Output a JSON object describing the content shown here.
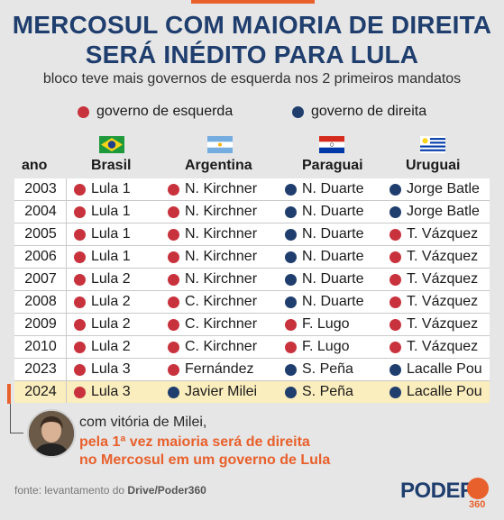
{
  "title_line1": "MERCOSUL COM MAIORIA DE DIREITA",
  "title_line2": "SERÁ INÉDITO PARA LULA",
  "subtitle": "bloco teve mais governos de esquerda nos 2 primeiros mandatos",
  "legend": {
    "left": "governo de esquerda",
    "right": "governo de direita"
  },
  "colors": {
    "left": "#c8323c",
    "right": "#1f3e6e",
    "accent": "#e8602c",
    "title": "#1f3e6e"
  },
  "chart_data": {
    "type": "table",
    "title": "MERCOSUL COM MAIORIA DE DIREITA SERÁ INÉDITO PARA LULA",
    "columns": [
      "ano",
      "Brasil",
      "Argentina",
      "Paraguai",
      "Uruguai"
    ],
    "rows": [
      {
        "year": "2003",
        "cells": [
          {
            "name": "Lula 1",
            "side": "left"
          },
          {
            "name": "N. Kirchner",
            "side": "left"
          },
          {
            "name": "N. Duarte",
            "side": "right"
          },
          {
            "name": "Jorge Batle",
            "side": "right"
          }
        ]
      },
      {
        "year": "2004",
        "cells": [
          {
            "name": "Lula 1",
            "side": "left"
          },
          {
            "name": "N. Kirchner",
            "side": "left"
          },
          {
            "name": "N. Duarte",
            "side": "right"
          },
          {
            "name": "Jorge Batle",
            "side": "right"
          }
        ]
      },
      {
        "year": "2005",
        "cells": [
          {
            "name": "Lula 1",
            "side": "left"
          },
          {
            "name": "N. Kirchner",
            "side": "left"
          },
          {
            "name": "N. Duarte",
            "side": "right"
          },
          {
            "name": "T. Vázquez",
            "side": "left"
          }
        ]
      },
      {
        "year": "2006",
        "cells": [
          {
            "name": "Lula 1",
            "side": "left"
          },
          {
            "name": "N. Kirchner",
            "side": "left"
          },
          {
            "name": "N. Duarte",
            "side": "right"
          },
          {
            "name": "T. Vázquez",
            "side": "left"
          }
        ]
      },
      {
        "year": "2007",
        "cells": [
          {
            "name": "Lula 2",
            "side": "left"
          },
          {
            "name": "N. Kirchner",
            "side": "left"
          },
          {
            "name": "N. Duarte",
            "side": "right"
          },
          {
            "name": "T. Vázquez",
            "side": "left"
          }
        ]
      },
      {
        "year": "2008",
        "cells": [
          {
            "name": "Lula 2",
            "side": "left"
          },
          {
            "name": "C. Kirchner",
            "side": "left"
          },
          {
            "name": "N. Duarte",
            "side": "right"
          },
          {
            "name": "T. Vázquez",
            "side": "left"
          }
        ]
      },
      {
        "year": "2009",
        "cells": [
          {
            "name": "Lula 2",
            "side": "left"
          },
          {
            "name": "C. Kirchner",
            "side": "left"
          },
          {
            "name": "F. Lugo",
            "side": "left"
          },
          {
            "name": "T. Vázquez",
            "side": "left"
          }
        ]
      },
      {
        "year": "2010",
        "cells": [
          {
            "name": "Lula 2",
            "side": "left"
          },
          {
            "name": "C. Kirchner",
            "side": "left"
          },
          {
            "name": "F. Lugo",
            "side": "left"
          },
          {
            "name": "T. Vázquez",
            "side": "left"
          }
        ]
      },
      {
        "year": "2023",
        "cells": [
          {
            "name": "Lula 3",
            "side": "left"
          },
          {
            "name": "Fernández",
            "side": "left"
          },
          {
            "name": "S. Peña",
            "side": "right"
          },
          {
            "name": "Lacalle Pou",
            "side": "right"
          }
        ]
      },
      {
        "year": "2024",
        "highlight": true,
        "cells": [
          {
            "name": "Lula 3",
            "side": "left"
          },
          {
            "name": "Javier Milei",
            "side": "right"
          },
          {
            "name": "S. Peña",
            "side": "right"
          },
          {
            "name": "Lacalle Pou",
            "side": "right"
          }
        ]
      }
    ]
  },
  "note": {
    "line1": "com vitória de Milei,",
    "line2": "pela 1ª vez maioria será de direita",
    "line3": "no Mercosul em um governo de Lula"
  },
  "source_prefix": "fonte: levantamento do ",
  "source_bold": "Drive/Poder360",
  "logo_text": "PODER",
  "logo_sub": "360",
  "flags": [
    "brazil-flag-icon",
    "argentina-flag-icon",
    "paraguay-flag-icon",
    "uruguay-flag-icon"
  ]
}
